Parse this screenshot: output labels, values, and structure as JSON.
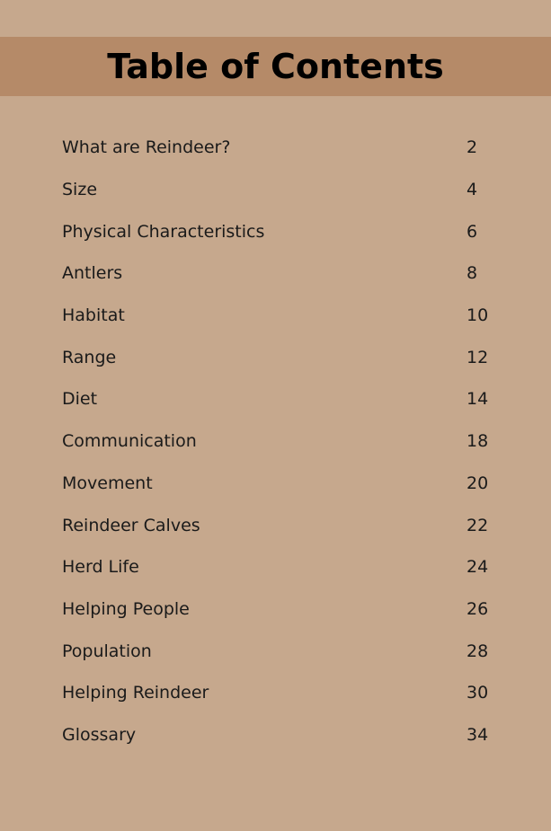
{
  "title": "Table of Contents",
  "colors": {
    "background": "#c6a88d",
    "title_band": "#b58a68",
    "text": "#1a1a1a"
  },
  "entries": [
    {
      "label": "What are Reindeer?",
      "page": "2"
    },
    {
      "label": "Size",
      "page": "4"
    },
    {
      "label": "Physical Characteristics",
      "page": "6"
    },
    {
      "label": "Antlers",
      "page": "8"
    },
    {
      "label": "Habitat",
      "page": "10"
    },
    {
      "label": "Range",
      "page": "12"
    },
    {
      "label": "Diet",
      "page": "14"
    },
    {
      "label": "Communication",
      "page": "18"
    },
    {
      "label": "Movement",
      "page": "20"
    },
    {
      "label": "Reindeer Calves",
      "page": "22"
    },
    {
      "label": "Herd Life",
      "page": "24"
    },
    {
      "label": "Helping People",
      "page": "26"
    },
    {
      "label": "Population",
      "page": "28"
    },
    {
      "label": "Helping Reindeer",
      "page": "30"
    },
    {
      "label": "Glossary",
      "page": "34"
    }
  ]
}
